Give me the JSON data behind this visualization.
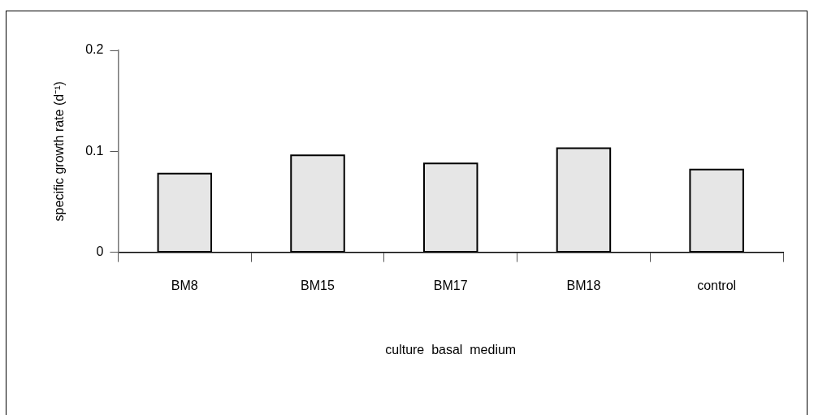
{
  "chart_data": {
    "type": "bar",
    "xlabel": "culture  basal  medium",
    "ylabel": "specific growth rate (d⁻¹)",
    "categories": [
      "BM8",
      "BM15",
      "BM17",
      "BM18",
      "control"
    ],
    "values": [
      0.078,
      0.096,
      0.088,
      0.103,
      0.082
    ],
    "color": "#e6e6e6",
    "ylim": [
      0,
      0.2
    ],
    "yticks": [
      0,
      0.1,
      0.2
    ],
    "grid": false,
    "legend": false
  }
}
